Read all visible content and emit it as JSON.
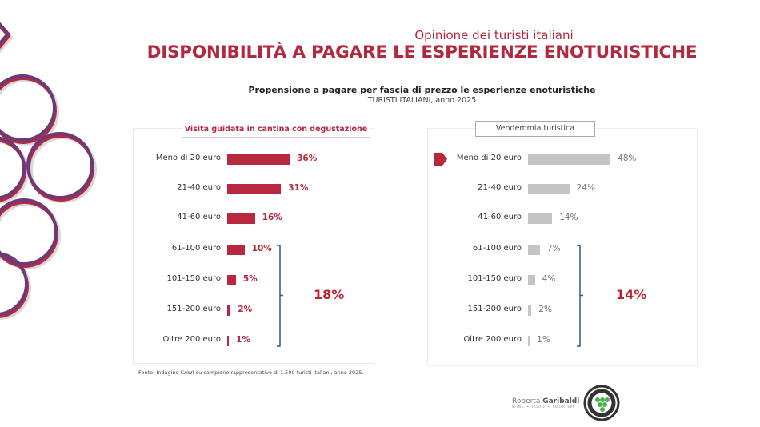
{
  "header": {
    "subtitle": "Opinione dei turisti italiani",
    "title": "DISPONIBILITÀ A PAGARE LE ESPERIENZE ENOTURISTICHE",
    "chart_title": "Propensione a pagare per fascia di prezzo le esperienze enoturistiche",
    "chart_subtitle": "TURISTI ITALIANI, anno 2025"
  },
  "colors": {
    "accent": "#b3283d",
    "bar_red": "#b8293f",
    "bar_grey": "#c4c4c4",
    "bracket": "#2b5f7a"
  },
  "chart_data": [
    {
      "type": "bar",
      "orientation": "horizontal",
      "title": "Visita guidata in cantina con degustazione",
      "categories": [
        "Meno di 20 euro",
        "21-40 euro",
        "41-60 euro",
        "61-100 euro",
        "101-150 euro",
        "151-200 euro",
        "Oltre 200 euro"
      ],
      "values": [
        36,
        31,
        16,
        10,
        5,
        2,
        1
      ],
      "labels": [
        "36%",
        "31%",
        "16%",
        "10%",
        "5%",
        "2%",
        "1%"
      ],
      "unit": "%",
      "bracket": {
        "from": "61-100 euro",
        "to": "Oltre 200 euro",
        "label": "18%"
      },
      "highlight": false
    },
    {
      "type": "bar",
      "orientation": "horizontal",
      "title": "Vendemmia turistica",
      "categories": [
        "Meno di 20 euro",
        "21-40 euro",
        "41-60 euro",
        "61-100 euro",
        "101-150 euro",
        "151-200 euro",
        "Oltre 200 euro"
      ],
      "values": [
        48,
        24,
        14,
        7,
        4,
        2,
        1
      ],
      "labels": [
        "48%",
        "24%",
        "14%",
        "7%",
        "4%",
        "2%",
        "1%"
      ],
      "unit": "%",
      "bracket": {
        "from": "61-100 euro",
        "to": "Oltre 200 euro",
        "label": "14%"
      },
      "highlight": true,
      "highlight_category": "Meno di 20 euro"
    }
  ],
  "footer": {
    "source": "Fonte: Indagine CAWI su campione rappresentativo di 1.500 turisti italiani, anno 2025.",
    "brand_first": "Roberta ",
    "brand_last": "Garibaldi",
    "brand_tagline": "WINE • FOOD • TOURISM",
    "badge_icon": "grape-badge-icon"
  }
}
